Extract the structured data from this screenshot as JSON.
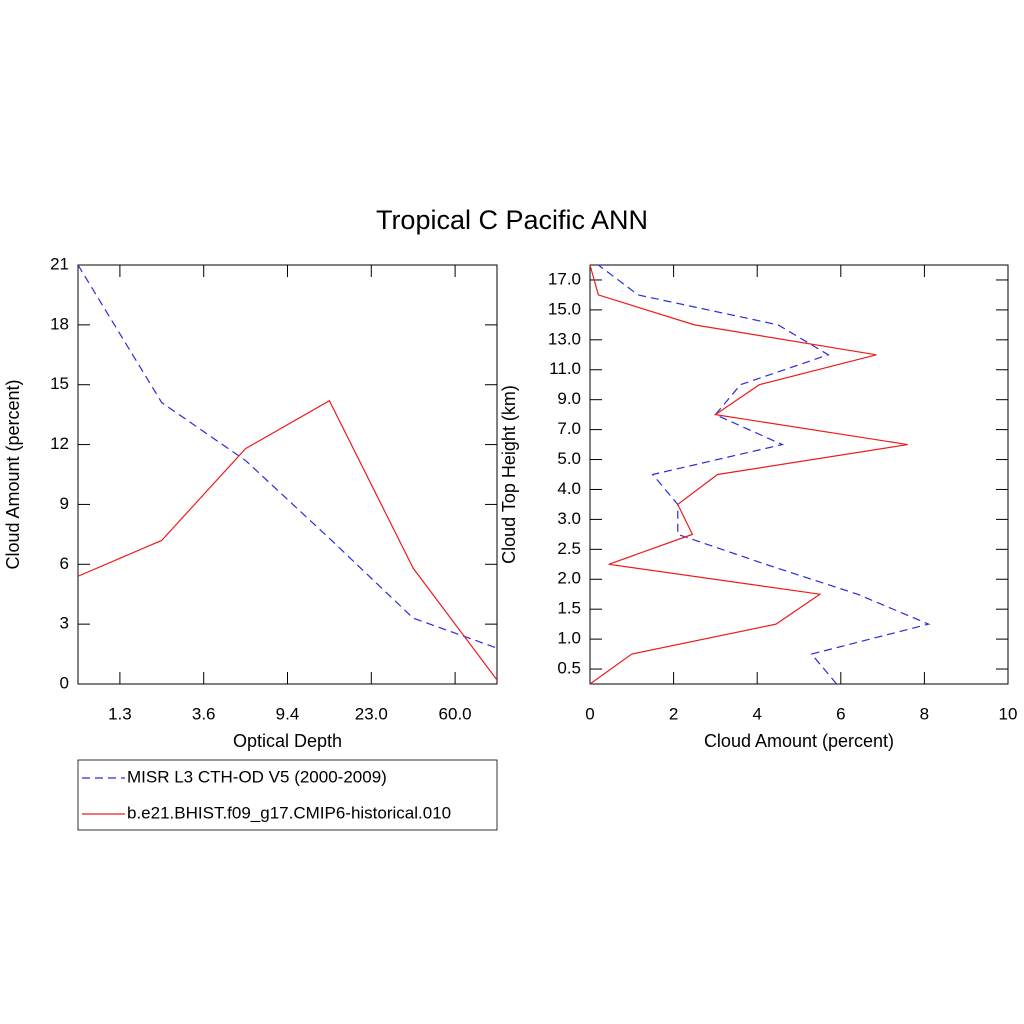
{
  "title": "Tropical C Pacific ANN",
  "chart_data": [
    {
      "type": "line",
      "orientation": "vertical",
      "x_label": "Optical Depth",
      "y_label": "Cloud Amount (percent)",
      "x": [
        0,
        1,
        2,
        3,
        4,
        5
      ],
      "xlim": [
        0,
        5
      ],
      "xticks": [
        {
          "value": 0.5,
          "label": "1.3"
        },
        {
          "value": 1.5,
          "label": "3.6"
        },
        {
          "value": 2.5,
          "label": "9.4"
        },
        {
          "value": 3.5,
          "label": "23.0"
        },
        {
          "value": 4.5,
          "label": "60.0"
        }
      ],
      "ylim": [
        0,
        21
      ],
      "yticks": [
        0,
        3,
        6,
        9,
        12,
        15,
        18,
        21
      ],
      "series": [
        {
          "name": "MISR L3 CTH-OD V5 (2000-2009)",
          "color": "#2b2bdd",
          "dashed": true,
          "values": [
            21,
            14.1,
            11.2,
            7.3,
            3.3,
            1.8
          ]
        },
        {
          "name": "b.e21.BHIST.f09_g17.CMIP6-historical.010",
          "color": "#ee1c1c",
          "dashed": false,
          "values": [
            5.4,
            7.2,
            11.8,
            14.2,
            5.8,
            0.2
          ]
        }
      ]
    },
    {
      "type": "line",
      "orientation": "horizontal",
      "x_label": "Cloud Amount (percent)",
      "y_label": "Cloud Top Height (km)",
      "y": [
        0,
        1,
        2,
        3,
        4,
        5,
        6,
        7,
        8,
        9,
        10,
        11,
        12,
        13,
        14
      ],
      "ylim": [
        0,
        14
      ],
      "yticks": [
        {
          "value": 0.5,
          "label": "0.5"
        },
        {
          "value": 1.5,
          "label": "1.0"
        },
        {
          "value": 2.5,
          "label": "1.5"
        },
        {
          "value": 3.5,
          "label": "2.0"
        },
        {
          "value": 4.5,
          "label": "2.5"
        },
        {
          "value": 5.5,
          "label": "3.0"
        },
        {
          "value": 6.5,
          "label": "4.0"
        },
        {
          "value": 7.5,
          "label": "5.0"
        },
        {
          "value": 8.5,
          "label": "7.0"
        },
        {
          "value": 9.5,
          "label": "9.0"
        },
        {
          "value": 10.5,
          "label": "11.0"
        },
        {
          "value": 11.5,
          "label": "13.0"
        },
        {
          "value": 12.5,
          "label": "15.0"
        },
        {
          "value": 13.5,
          "label": "17.0"
        }
      ],
      "xlim": [
        0,
        10
      ],
      "xticks": [
        0,
        2,
        4,
        6,
        8,
        10
      ],
      "series": [
        {
          "color": "#2b2bdd",
          "dashed": true,
          "values": [
            5.9,
            5.3,
            8.1,
            6.4,
            4.2,
            2.1,
            2.1,
            1.5,
            4.6,
            3.0,
            3.6,
            5.7,
            4.5,
            1.15,
            0.2
          ]
        },
        {
          "color": "#ee1c1c",
          "dashed": false,
          "values": [
            0,
            1.0,
            4.45,
            5.5,
            0.45,
            2.45,
            2.1,
            3.05,
            7.6,
            3.0,
            4.05,
            6.85,
            2.5,
            0.2,
            0
          ]
        }
      ]
    }
  ]
}
